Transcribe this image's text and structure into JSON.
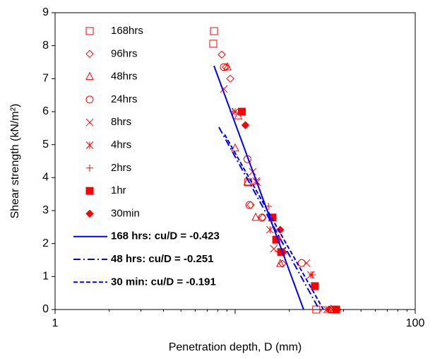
{
  "chart_data": {
    "type": "scatter",
    "x_label": "Penetration depth, D (mm)",
    "y_label": "Shear strength (kN/m²)",
    "xlim": [
      1,
      100
    ],
    "xticks": [
      1,
      100
    ],
    "x_log": true,
    "ylim": [
      0,
      9
    ],
    "yticks": [
      0,
      1,
      2,
      3,
      4,
      5,
      6,
      7,
      8,
      9
    ],
    "legend": "upper left",
    "series": [
      {
        "name": "168hrs",
        "color": "#ff0000",
        "marker": "square-open",
        "x": [
          7.63,
          7.56,
          11.8,
          28.2
        ],
        "values": [
          8.44,
          8.06,
          3.86,
          0
        ]
      },
      {
        "name": "96hrs",
        "color": "#ff0000",
        "marker": "diamond-open",
        "x": [
          8.42,
          8.89,
          9.39,
          12.2,
          14.2,
          18.3,
          33.2
        ],
        "values": [
          7.73,
          7.35,
          7.0,
          3.17,
          2.79,
          1.39,
          0
        ]
      },
      {
        "name": "48hrs",
        "color": "#ff0000",
        "marker": "triangle-open",
        "x": [
          9.06,
          10.4,
          10.0,
          11.7,
          13.0,
          17.8,
          34.1
        ],
        "values": [
          7.35,
          5.87,
          4.89,
          3.86,
          2.79,
          1.39,
          0
        ]
      },
      {
        "name": "24hrs",
        "color": "#ff0000",
        "marker": "circle-open",
        "x": [
          8.65,
          11.7,
          12.0,
          14.1,
          23.4,
          34.1
        ],
        "values": [
          7.35,
          4.56,
          3.17,
          2.79,
          1.41,
          0
        ]
      },
      {
        "name": "8hrs",
        "color": "#ff0000",
        "marker": "x",
        "x": [
          8.65,
          12.5,
          13.2,
          16.4,
          24.9,
          32.3
        ],
        "values": [
          6.69,
          4.18,
          3.86,
          1.84,
          1.41,
          0
        ]
      },
      {
        "name": "4hrs",
        "color": "#ff0000",
        "marker": "asterisk",
        "x": [
          10.0,
          13.1,
          15.6,
          26.3,
          33.2
        ],
        "values": [
          6.0,
          3.9,
          2.42,
          1.05,
          0
        ]
      },
      {
        "name": "2hrs",
        "color": "#ff0000",
        "marker": "plus",
        "x": [
          9.72,
          15.3,
          17.3,
          26.8,
          35.4
        ],
        "values": [
          6.0,
          3.13,
          1.76,
          1.05,
          0
        ]
      },
      {
        "name": "1hr",
        "color": "#ff0000",
        "marker": "square",
        "x": [
          10.9,
          16.1,
          16.9,
          18.0,
          27.7,
          36.4
        ],
        "values": [
          6.0,
          2.79,
          2.12,
          1.74,
          0.71,
          0
        ]
      },
      {
        "name": "30min",
        "color": "#ff0000",
        "marker": "diamond",
        "x": [
          11.4,
          17.8,
          18.5,
          37.0
        ],
        "values": [
          5.59,
          2.42,
          1.74,
          0
        ]
      },
      {
        "name": "168 hrs: cu/D = -0.423",
        "color": "#0000ff",
        "type": "line",
        "dash": "solid",
        "x": [
          7.63,
          24.0
        ],
        "values": [
          7.39,
          0
        ]
      },
      {
        "name": "48 hrs: cu/D = -0.251",
        "color": "#0000ff",
        "type": "line",
        "dash": "dashdot",
        "x": [
          8.12,
          29.3
        ],
        "values": [
          5.53,
          0
        ]
      },
      {
        "name": "30 min: cu/D = -0.191",
        "color": "#0000ff",
        "type": "line",
        "dash": "dash",
        "x": [
          8.74,
          30.9
        ],
        "values": [
          5.31,
          0
        ]
      }
    ]
  }
}
